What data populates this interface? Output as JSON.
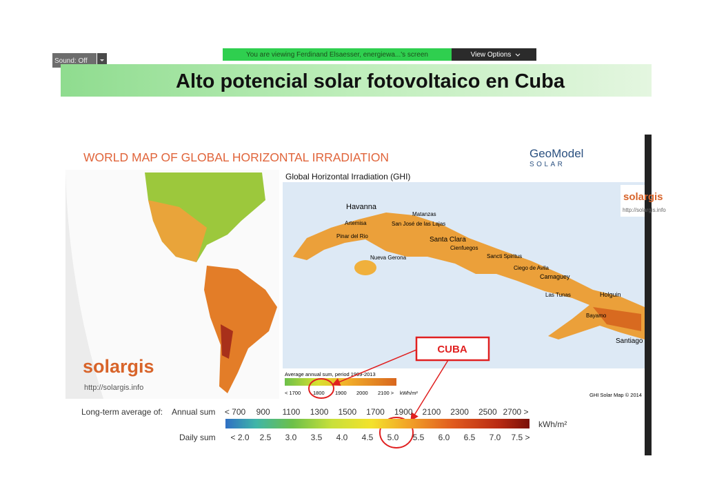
{
  "toolbar": {
    "sound": "Sound: Off",
    "viewing": "You are viewing Ferdinand Elsaesser, energiewa...'s screen",
    "view_options": "View Options"
  },
  "slide": {
    "title": "Alto potencial solar fotovoltaico en Cuba",
    "map_title": "WORLD MAP OF GLOBAL HORIZONTAL IRRADIATION",
    "brand": {
      "name": "GeoModel",
      "sub": "SOLAR"
    },
    "solargis": {
      "logo": "solargis",
      "url": "http://solargis.info"
    },
    "ghi": {
      "title": "Global Horizontal Irradiation (GHI)",
      "cities": [
        "Havanna",
        "Matanzas",
        "Artemisa",
        "San José de las Lajas",
        "Pinar del Rio",
        "Santa Clara",
        "Cienfuegos",
        "Nueva Gerona",
        "Sancti Spiritus",
        "Ciego de Avila",
        "Camaguey",
        "Las Tunas",
        "Holguin",
        "Bayamo",
        "Santiago"
      ],
      "legend_title": "Average annual sum, period 1999-2013",
      "legend_labels": [
        "< 1700",
        "1800",
        "1900",
        "2000",
        "2100 >",
        "kWh/m²"
      ],
      "copyright": "GHI Solar Map © 2014",
      "corner_logo": "solargis",
      "corner_url": "http://solargis.info"
    },
    "callout": "CUBA",
    "scale": {
      "lead": "Long-term average of:",
      "annual_label": "Annual sum",
      "annual": [
        "< 700",
        "900",
        "1100",
        "1300",
        "1500",
        "1700",
        "1900",
        "2100",
        "2300",
        "2500",
        "2700 >"
      ],
      "unit": "kWh/m²",
      "daily_label": "Daily sum",
      "daily": [
        "< 2.0",
        "2.5",
        "3.0",
        "3.5",
        "4.0",
        "4.5",
        "5.0",
        "5.5",
        "6.0",
        "6.5",
        "7.0",
        "7.5 >"
      ]
    }
  }
}
